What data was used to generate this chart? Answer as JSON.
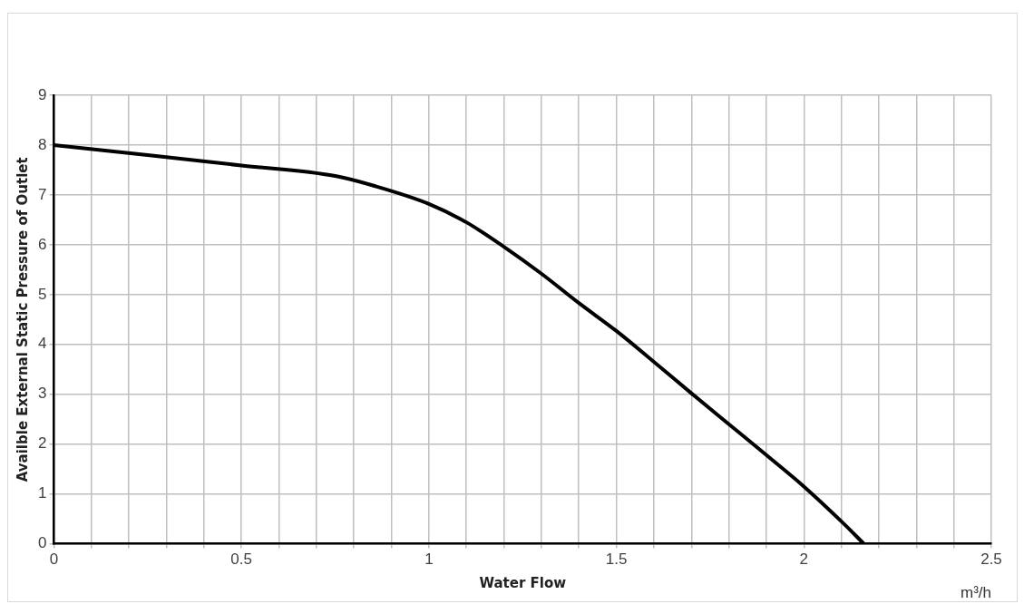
{
  "chart_data": {
    "type": "line",
    "xlabel": "Water Flow",
    "ylabel": "Availble External Static Pressure of Outlet",
    "annotations": [
      "m³/h"
    ],
    "x": [
      0,
      0.25,
      0.5,
      0.75,
      0.855,
      1.0,
      1.1,
      1.2,
      1.3,
      1.4,
      1.5,
      1.6,
      1.7,
      1.8,
      1.9,
      2.0,
      2.1,
      2.16
    ],
    "series": [
      {
        "color": "#000000",
        "values": [
          8,
          7.8,
          7.59,
          7.38,
          7.18,
          6.82,
          6.45,
          5.96,
          5.42,
          4.83,
          4.27,
          3.65,
          3.02,
          2.4,
          1.78,
          1.15,
          0.45,
          0
        ]
      }
    ],
    "xlim": [
      0,
      2.5
    ],
    "ylim": [
      0,
      9
    ],
    "xticks": [
      0,
      {
        "value": 0.1,
        "label": null
      },
      {
        "value": 0.2,
        "label": null
      },
      {
        "value": 0.3,
        "label": null
      },
      {
        "value": 0.4,
        "label": null
      },
      0.5,
      {
        "value": 0.6,
        "label": null
      },
      {
        "value": 0.7,
        "label": null
      },
      {
        "value": 0.8,
        "label": null
      },
      {
        "value": 0.9,
        "label": null
      },
      1,
      {
        "value": 1.1,
        "label": null
      },
      {
        "value": 1.2,
        "label": null
      },
      {
        "value": 1.3,
        "label": null
      },
      {
        "value": 1.4,
        "label": null
      },
      1.5,
      {
        "value": 1.6,
        "label": null
      },
      {
        "value": 1.7,
        "label": null
      },
      {
        "value": 1.8,
        "label": null
      },
      {
        "value": 1.9,
        "label": null
      },
      2,
      {
        "value": 2.1,
        "label": null
      },
      {
        "value": 2.2,
        "label": null
      },
      {
        "value": 2.3,
        "label": null
      },
      {
        "value": 2.4,
        "label": null
      },
      2.5
    ],
    "yticks": [
      0,
      1,
      2,
      3,
      4,
      5,
      6,
      7,
      8,
      9
    ],
    "grid": true,
    "legend": false,
    "marker": "none",
    "line_style": "solid"
  }
}
